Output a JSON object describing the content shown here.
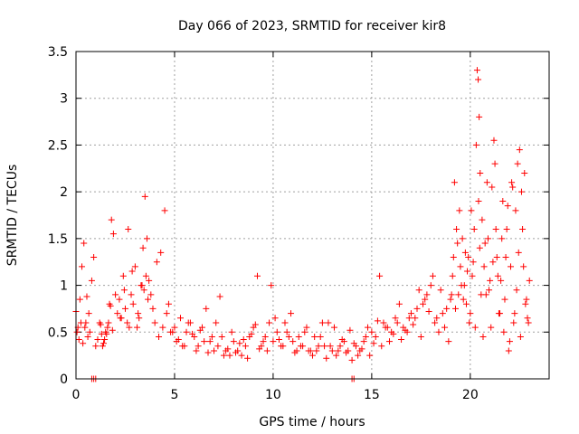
{
  "chart_data": {
    "type": "scatter",
    "title": "Day 066 of 2023, SRMTID for receiver kir8",
    "xlabel": "GPS time / hours",
    "ylabel": "SRMTID / TECUs",
    "xlim": [
      0,
      24
    ],
    "ylim": [
      0,
      3.5
    ],
    "x_ticks": [
      0,
      5,
      10,
      15,
      20
    ],
    "x_tick_labels": [
      "0",
      "5",
      "10",
      "15",
      "20"
    ],
    "y_ticks": [
      0,
      0.5,
      1,
      1.5,
      2,
      2.5,
      3,
      3.5
    ],
    "y_tick_labels": [
      "0",
      "0.5",
      "1",
      "1.5",
      "2",
      "2.5",
      "3",
      "3.5"
    ],
    "grid": true,
    "marker": "+",
    "color": "#ff0000",
    "series": [
      {
        "name": "kir8",
        "x": [
          0.0,
          0.1,
          0.2,
          0.3,
          0.4,
          0.5,
          0.6,
          0.7,
          0.8,
          0.9,
          1.0,
          1.1,
          1.2,
          1.3,
          1.4,
          1.5,
          1.6,
          1.7,
          1.8,
          1.9,
          2.0,
          2.1,
          2.2,
          2.3,
          2.4,
          2.5,
          2.6,
          2.7,
          2.8,
          2.9,
          3.0,
          3.1,
          3.2,
          3.3,
          3.4,
          3.5,
          3.6,
          3.7,
          3.8,
          3.9,
          4.0,
          4.2,
          4.4,
          4.6,
          4.8,
          5.0,
          5.2,
          5.4,
          5.6,
          5.8,
          6.0,
          6.2,
          6.4,
          6.6,
          6.8,
          7.0,
          7.2,
          7.4,
          7.6,
          7.8,
          8.0,
          8.2,
          8.4,
          8.6,
          8.8,
          9.0,
          9.2,
          9.4,
          9.6,
          9.8,
          10.0,
          10.2,
          10.4,
          10.6,
          10.8,
          11.0,
          11.2,
          11.4,
          11.6,
          11.8,
          12.0,
          12.2,
          12.4,
          12.6,
          12.8,
          13.0,
          13.2,
          13.4,
          13.6,
          13.8,
          14.0,
          14.2,
          14.4,
          14.6,
          14.8,
          15.0,
          15.2,
          15.4,
          15.6,
          15.8,
          16.0,
          16.2,
          16.4,
          16.6,
          16.8,
          17.0,
          17.2,
          17.4,
          17.6,
          17.8,
          18.0,
          18.2,
          18.4,
          18.6,
          18.8,
          19.0,
          19.1,
          19.2,
          19.3,
          19.4,
          19.5,
          19.6,
          19.7,
          19.8,
          19.9,
          20.0,
          20.1,
          20.2,
          20.3,
          20.35,
          20.4,
          20.45,
          20.5,
          20.6,
          20.7,
          20.8,
          20.9,
          21.0,
          21.1,
          21.2,
          21.3,
          21.4,
          21.5,
          21.6,
          21.7,
          21.8,
          21.9,
          22.0,
          22.1,
          22.2,
          22.3,
          22.4,
          22.5,
          22.6,
          22.7,
          22.8,
          22.9,
          23.0,
          0.05,
          0.15,
          0.25,
          0.35,
          0.45,
          0.55,
          0.65,
          1.25,
          1.35,
          1.45,
          1.55,
          1.65,
          1.75,
          1.85,
          2.25,
          2.45,
          2.65,
          2.85,
          3.15,
          3.35,
          3.45,
          3.55,
          3.65,
          4.1,
          4.3,
          4.5,
          4.7,
          4.9,
          5.1,
          5.3,
          5.5,
          5.7,
          5.9,
          6.1,
          6.3,
          6.5,
          6.7,
          6.9,
          7.1,
          7.3,
          7.5,
          7.7,
          7.9,
          8.1,
          8.3,
          8.5,
          8.7,
          8.9,
          9.1,
          9.3,
          9.5,
          9.7,
          9.9,
          10.1,
          10.3,
          10.5,
          10.7,
          10.9,
          11.1,
          11.3,
          11.5,
          11.7,
          11.9,
          12.1,
          12.3,
          12.5,
          12.7,
          12.9,
          13.1,
          13.3,
          13.5,
          13.7,
          13.9,
          14.1,
          14.3,
          14.5,
          14.7,
          14.9,
          15.1,
          15.3,
          15.5,
          15.7,
          15.9,
          16.1,
          16.3,
          16.5,
          16.7,
          16.9,
          17.1,
          17.3,
          17.5,
          17.7,
          17.9,
          18.1,
          18.3,
          18.5,
          18.7,
          18.9,
          19.05,
          19.15,
          19.25,
          19.35,
          19.45,
          19.55,
          19.65,
          19.75,
          19.85,
          19.95,
          20.05,
          20.15,
          20.25,
          20.42,
          20.48,
          20.55,
          20.65,
          20.75,
          20.85,
          20.95,
          21.05,
          21.15,
          21.25,
          21.35,
          21.45,
          21.55,
          21.65,
          21.75,
          21.85,
          21.95,
          22.05,
          22.15,
          22.25,
          22.35,
          22.45,
          22.55,
          22.65,
          22.75,
          22.85,
          22.95,
          0.8,
          0.9,
          1.0,
          14.0,
          14.1
        ],
        "y": [
          0.72,
          0.55,
          0.85,
          1.2,
          1.45,
          0.6,
          0.45,
          0.5,
          1.05,
          1.3,
          0.35,
          0.42,
          0.6,
          0.48,
          0.38,
          0.5,
          0.55,
          0.8,
          1.7,
          1.55,
          0.9,
          0.7,
          0.85,
          0.65,
          1.1,
          0.75,
          0.6,
          0.55,
          0.9,
          0.8,
          1.2,
          0.55,
          0.65,
          1.0,
          1.4,
          1.95,
          1.5,
          1.05,
          0.9,
          0.75,
          0.6,
          0.45,
          0.55,
          0.7,
          0.5,
          0.55,
          0.42,
          0.35,
          0.5,
          0.6,
          0.45,
          0.35,
          0.55,
          0.75,
          0.4,
          0.3,
          0.35,
          0.45,
          0.3,
          0.25,
          0.4,
          0.3,
          0.25,
          0.35,
          0.45,
          0.55,
          1.1,
          0.35,
          0.45,
          0.6,
          0.4,
          0.5,
          0.35,
          0.6,
          0.45,
          0.4,
          0.3,
          0.35,
          0.5,
          0.3,
          0.25,
          0.3,
          0.45,
          0.35,
          0.6,
          0.3,
          0.25,
          0.35,
          0.4,
          0.3,
          0.2,
          0.35,
          0.3,
          0.4,
          0.55,
          0.5,
          0.45,
          1.1,
          0.6,
          0.55,
          0.5,
          0.65,
          0.8,
          0.55,
          0.5,
          0.7,
          0.65,
          0.95,
          0.8,
          0.9,
          1.0,
          0.6,
          0.5,
          0.7,
          0.75,
          0.85,
          1.1,
          2.1,
          1.6,
          0.9,
          1.2,
          1.5,
          1.0,
          0.8,
          1.3,
          0.7,
          1.1,
          1.6,
          2.5,
          3.3,
          3.2,
          2.8,
          2.2,
          1.7,
          1.2,
          0.9,
          1.5,
          1.05,
          2.05,
          2.55,
          1.6,
          1.1,
          0.7,
          1.5,
          0.5,
          1.3,
          1.85,
          0.4,
          2.1,
          0.6,
          1.8,
          2.3,
          2.45,
          2.0,
          1.2,
          0.8,
          0.65,
          1.05,
          0.5,
          0.42,
          0.6,
          0.38,
          0.55,
          0.88,
          0.7,
          0.58,
          0.35,
          0.42,
          0.48,
          0.6,
          0.78,
          0.52,
          0.65,
          0.95,
          1.6,
          1.15,
          0.7,
          1.0,
          0.95,
          1.1,
          0.85,
          1.25,
          1.35,
          1.8,
          0.8,
          0.5,
          0.4,
          0.65,
          0.35,
          0.6,
          0.48,
          0.3,
          0.52,
          0.4,
          0.28,
          0.45,
          0.6,
          0.88,
          0.25,
          0.32,
          0.5,
          0.28,
          0.38,
          0.42,
          0.22,
          0.48,
          0.58,
          0.32,
          0.4,
          0.3,
          1.0,
          0.65,
          0.42,
          0.35,
          0.5,
          0.7,
          0.28,
          0.45,
          0.35,
          0.55,
          0.3,
          0.45,
          0.35,
          0.6,
          0.22,
          0.35,
          0.55,
          0.3,
          0.42,
          0.28,
          0.52,
          0.38,
          0.25,
          0.32,
          0.45,
          0.25,
          0.38,
          0.62,
          0.35,
          0.55,
          0.4,
          0.48,
          0.6,
          0.42,
          0.52,
          0.65,
          0.58,
          0.75,
          0.45,
          0.85,
          0.72,
          1.1,
          0.65,
          0.95,
          0.55,
          0.4,
          0.9,
          1.3,
          0.75,
          1.45,
          1.8,
          1.0,
          0.85,
          1.35,
          1.15,
          0.6,
          1.8,
          1.25,
          0.55,
          1.9,
          1.4,
          0.9,
          0.45,
          1.45,
          2.1,
          0.95,
          0.55,
          1.25,
          2.3,
          1.3,
          0.7,
          1.05,
          1.9,
          0.85,
          1.6,
          0.3,
          1.2,
          2.05,
          0.7,
          0.95,
          1.35,
          0.45,
          1.6,
          2.2,
          0.85,
          0.6,
          0.0,
          0.0,
          0.0,
          0.0,
          0.0
        ]
      }
    ]
  }
}
